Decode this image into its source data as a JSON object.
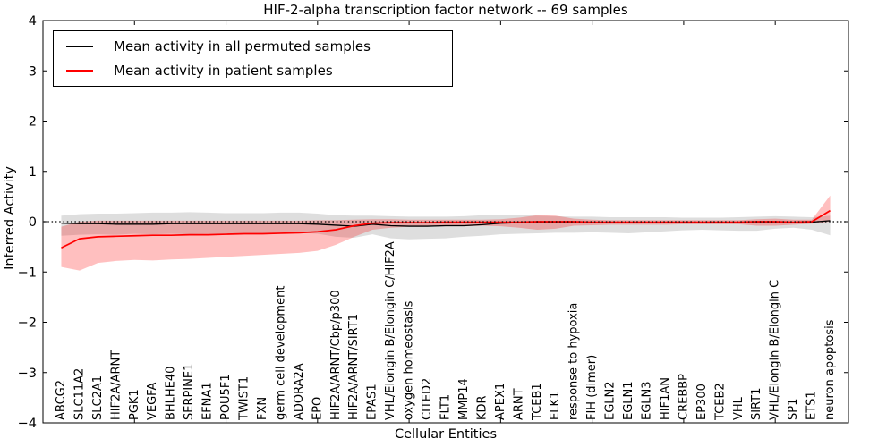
{
  "chart_data": {
    "type": "line",
    "title": "HIF-2-alpha transcription factor network -- 69 samples",
    "xlabel": "Cellular Entities",
    "ylabel": "Inferred Activity",
    "ylim": [
      -4,
      4
    ],
    "yticks": [
      4,
      3,
      2,
      1,
      0,
      -1,
      -2,
      -3,
      -4
    ],
    "grid": false,
    "legend_position": "upper left",
    "zero_reference_line": 0,
    "categories": [
      "ABCG2",
      "SLC11A2",
      "SLC2A1",
      "HIF2A/ARNT",
      "PGK1",
      "VEGFA",
      "BHLHE40",
      "SERPINE1",
      "EFNA1",
      "POU5F1",
      "TWIST1",
      "FXN",
      "germ cell development",
      "ADORA2A",
      "EPO",
      "HIF2A/ARNT/Cbp/p300",
      "HIF2A/ARNT/SIRT1",
      "EPAS1",
      "VHL/Elongin B/Elongin C/HIF2A",
      "oxygen homeostasis",
      "CITED2",
      "FLT1",
      "MMP14",
      "KDR",
      "APEX1",
      "ARNT",
      "TCEB1",
      "ELK1",
      "response to hypoxia",
      "FIH (dimer)",
      "EGLN2",
      "EGLN1",
      "EGLN3",
      "HIF1AN",
      "CREBBP",
      "EP300",
      "TCEB2",
      "VHL",
      "SIRT1",
      "VHL/Elongin B/Elongin C",
      "SP1",
      "ETS1",
      "neuron apoptosis"
    ],
    "series": [
      {
        "name": "Mean activity in all permuted samples",
        "color": "#000000",
        "band_color": "rgba(0,0,0,0.13)",
        "values": [
          -0.03,
          -0.04,
          -0.04,
          -0.05,
          -0.05,
          -0.05,
          -0.04,
          -0.04,
          -0.04,
          -0.04,
          -0.04,
          -0.04,
          -0.04,
          -0.04,
          -0.05,
          -0.07,
          -0.09,
          -0.05,
          -0.08,
          -0.09,
          -0.09,
          -0.08,
          -0.08,
          -0.06,
          -0.03,
          -0.02,
          -0.02,
          -0.02,
          -0.02,
          -0.02,
          -0.02,
          -0.02,
          -0.02,
          -0.02,
          -0.02,
          -0.02,
          -0.02,
          -0.02,
          -0.02,
          -0.02,
          -0.02,
          -0.01,
          0.02
        ],
        "band_hi": [
          0.12,
          0.15,
          0.16,
          0.16,
          0.17,
          0.18,
          0.18,
          0.19,
          0.18,
          0.17,
          0.17,
          0.17,
          0.18,
          0.18,
          0.16,
          0.13,
          0.12,
          0.12,
          0.11,
          0.1,
          0.1,
          0.1,
          0.11,
          0.13,
          0.14,
          0.13,
          0.12,
          0.11,
          0.1,
          0.1,
          0.09,
          0.09,
          0.09,
          0.09,
          0.08,
          0.08,
          0.08,
          0.09,
          0.1,
          0.11,
          0.1,
          0.09,
          0.12
        ],
        "band_lo": [
          -0.28,
          -0.26,
          -0.25,
          -0.26,
          -0.24,
          -0.25,
          -0.24,
          -0.25,
          -0.24,
          -0.24,
          -0.23,
          -0.23,
          -0.23,
          -0.22,
          -0.24,
          -0.3,
          -0.32,
          -0.25,
          -0.33,
          -0.35,
          -0.34,
          -0.33,
          -0.3,
          -0.28,
          -0.25,
          -0.24,
          -0.23,
          -0.22,
          -0.22,
          -0.21,
          -0.22,
          -0.23,
          -0.21,
          -0.19,
          -0.17,
          -0.16,
          -0.17,
          -0.18,
          -0.18,
          -0.14,
          -0.12,
          -0.16,
          -0.27
        ]
      },
      {
        "name": "Mean activity in patient samples",
        "color": "#ff0000",
        "band_color": "rgba(255,0,0,0.25)",
        "values": [
          -0.52,
          -0.34,
          -0.3,
          -0.29,
          -0.28,
          -0.27,
          -0.27,
          -0.26,
          -0.26,
          -0.25,
          -0.24,
          -0.24,
          -0.23,
          -0.22,
          -0.2,
          -0.16,
          -0.08,
          -0.03,
          -0.02,
          -0.02,
          -0.02,
          -0.01,
          -0.01,
          -0.01,
          -0.01,
          -0.01,
          0.0,
          0.0,
          0.0,
          -0.01,
          -0.01,
          -0.01,
          -0.01,
          -0.01,
          -0.01,
          -0.01,
          -0.01,
          -0.01,
          0.0,
          0.0,
          -0.01,
          0.0,
          0.22
        ],
        "band_hi": [
          -0.1,
          0.0,
          0.02,
          0.02,
          0.02,
          0.02,
          0.02,
          0.02,
          0.02,
          0.02,
          0.02,
          0.02,
          0.02,
          0.02,
          0.03,
          0.03,
          0.04,
          0.05,
          0.05,
          0.04,
          0.04,
          0.04,
          0.04,
          0.04,
          0.05,
          0.08,
          0.13,
          0.12,
          0.06,
          0.04,
          0.03,
          0.03,
          0.03,
          0.03,
          0.03,
          0.03,
          0.03,
          0.03,
          0.05,
          0.06,
          0.04,
          0.04,
          0.52
        ],
        "band_lo": [
          -0.9,
          -0.97,
          -0.82,
          -0.78,
          -0.76,
          -0.77,
          -0.75,
          -0.74,
          -0.72,
          -0.7,
          -0.68,
          -0.66,
          -0.64,
          -0.62,
          -0.58,
          -0.46,
          -0.3,
          -0.16,
          -0.12,
          -0.1,
          -0.1,
          -0.09,
          -0.09,
          -0.08,
          -0.09,
          -0.12,
          -0.16,
          -0.14,
          -0.08,
          -0.07,
          -0.06,
          -0.06,
          -0.06,
          -0.06,
          -0.05,
          -0.05,
          -0.05,
          -0.05,
          -0.08,
          -0.08,
          -0.06,
          -0.04,
          0.0
        ]
      }
    ]
  }
}
